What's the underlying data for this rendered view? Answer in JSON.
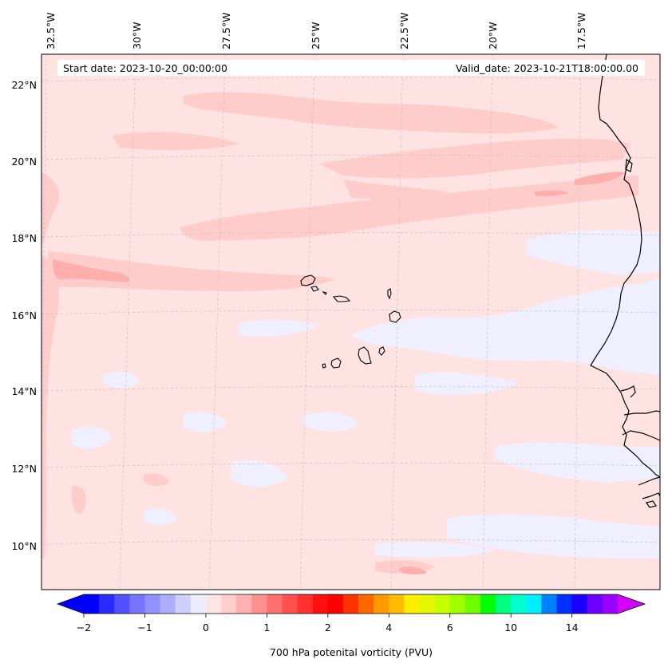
{
  "map": {
    "type": "filled-contour map",
    "start_date_text": "Start date: 2023-10-20_00:00:00",
    "valid_date_text": "Valid_date: 2023-10-21T18:00:00.00",
    "lon_ticks": [
      "32.5°W",
      "30°W",
      "27.5°W",
      "25°W",
      "22.5°W",
      "20°W",
      "17.5°W"
    ],
    "lat_ticks": [
      "22°N",
      "20°N",
      "18°N",
      "16°N",
      "14°N",
      "12°N",
      "10°N"
    ],
    "gridlines": true,
    "extent": {
      "lon": [
        -33,
        -15.5
      ],
      "lat": [
        8.7,
        22.8
      ]
    },
    "background_color": "#ffe3e3",
    "features": [
      "Cape Verde islands",
      "West African coastline (Mauritania, Senegal, Gambia, Guinea-Bissau)"
    ]
  },
  "colorbar": {
    "label": "700 hPa potenital vorticity (PVU)",
    "tick_labels": [
      "−2",
      "−1",
      "0",
      "1",
      "2",
      "4",
      "6",
      "10",
      "14"
    ],
    "tick_values": [
      -2,
      -1,
      0,
      1,
      2,
      4,
      6,
      10,
      14
    ],
    "extend": "both",
    "under_color": "#0000ff",
    "over_color": "#d400ff",
    "colors": [
      "#0000ff",
      "#2a2aff",
      "#5050ff",
      "#7575ff",
      "#9090ff",
      "#aeaeff",
      "#cfcfff",
      "#ececff",
      "#ffe6e6",
      "#ffcdcd",
      "#ffb0b0",
      "#ff9090",
      "#ff7070",
      "#ff5050",
      "#ff3030",
      "#ff1010",
      "#ff0000",
      "#ff3300",
      "#ff6600",
      "#ff9900",
      "#ffbb00",
      "#ffee00",
      "#e6f500",
      "#c8ff00",
      "#a0ff00",
      "#70ff00",
      "#00ff00",
      "#00ff80",
      "#00ffcc",
      "#00eeff",
      "#0080ff",
      "#0030ff",
      "#1a00ff",
      "#6a00ff",
      "#9900ff"
    ]
  }
}
